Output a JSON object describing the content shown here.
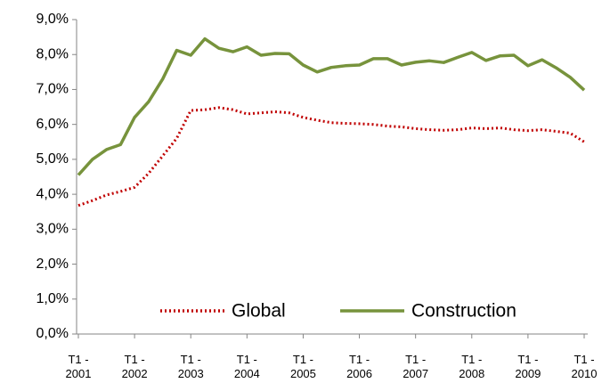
{
  "chart_data": {
    "type": "line",
    "categories": [
      "T1 - 2001",
      null,
      null,
      null,
      "T1 - 2002",
      null,
      null,
      null,
      "T1 - 2003",
      null,
      null,
      null,
      "T1 - 2004",
      null,
      null,
      null,
      "T1 - 2005",
      null,
      null,
      null,
      "T1 - 2006",
      null,
      null,
      null,
      "T1 - 2007",
      null,
      null,
      null,
      "T1 - 2008",
      null,
      null,
      null,
      "T1 - 2009",
      null,
      null,
      null,
      "T1 - 2010"
    ],
    "series": [
      {
        "name": "Global",
        "color": "#c00000",
        "style": "dotted",
        "values": [
          3.68,
          3.82,
          3.98,
          4.08,
          4.2,
          4.6,
          5.1,
          5.6,
          6.4,
          6.42,
          6.48,
          6.42,
          6.3,
          6.33,
          6.36,
          6.33,
          6.2,
          6.12,
          6.05,
          6.03,
          6.02,
          6.0,
          5.95,
          5.93,
          5.88,
          5.85,
          5.83,
          5.85,
          5.9,
          5.88,
          5.9,
          5.85,
          5.82,
          5.85,
          5.8,
          5.75,
          5.5
        ]
      },
      {
        "name": "Construction",
        "color": "#77933c",
        "style": "solid",
        "values": [
          4.55,
          5.0,
          5.28,
          5.42,
          6.2,
          6.65,
          7.3,
          8.12,
          7.98,
          8.45,
          8.18,
          8.08,
          8.22,
          7.98,
          8.03,
          8.02,
          7.7,
          7.5,
          7.63,
          7.68,
          7.7,
          7.88,
          7.88,
          7.7,
          7.78,
          7.82,
          7.77,
          7.92,
          8.06,
          7.83,
          7.96,
          7.98,
          7.68,
          7.85,
          7.62,
          7.35,
          6.98
        ]
      }
    ],
    "ylim": [
      0,
      9
    ],
    "yticks": [
      {
        "value": 0,
        "label": "0,0%"
      },
      {
        "value": 1,
        "label": "1,0%"
      },
      {
        "value": 2,
        "label": "2,0%"
      },
      {
        "value": 3,
        "label": "3,0%"
      },
      {
        "value": 4,
        "label": "4,0%"
      },
      {
        "value": 5,
        "label": "5,0%"
      },
      {
        "value": 6,
        "label": "6,0%"
      },
      {
        "value": 7,
        "label": "7,0%"
      },
      {
        "value": 8,
        "label": "8,0%"
      },
      {
        "value": 9,
        "label": "9,0%"
      }
    ],
    "grid": false,
    "legend": "bottom"
  }
}
